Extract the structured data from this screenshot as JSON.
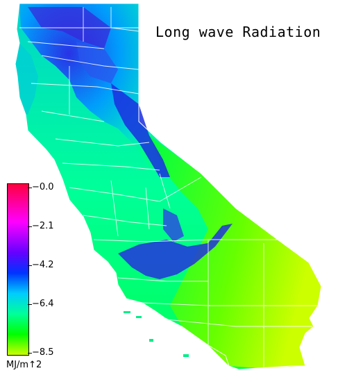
{
  "title": "Long wave Radiation",
  "colorbar": {
    "labels": [
      "−0.0",
      "−2.1",
      "−4.2",
      "−6.4",
      "−8.5"
    ],
    "unit": "MJ/m↑2",
    "stops": [
      "#ff0040",
      "#ff00ff",
      "#6600ff",
      "#0033ff",
      "#00ccff",
      "#00ff99",
      "#00ff00",
      "#ccff00"
    ]
  },
  "colors": {
    "high_negative": "#e0ff00",
    "mid": "#00ff00",
    "low": "#00ccff",
    "lowest": "#0000ee",
    "boundaries": "#ffffff"
  }
}
